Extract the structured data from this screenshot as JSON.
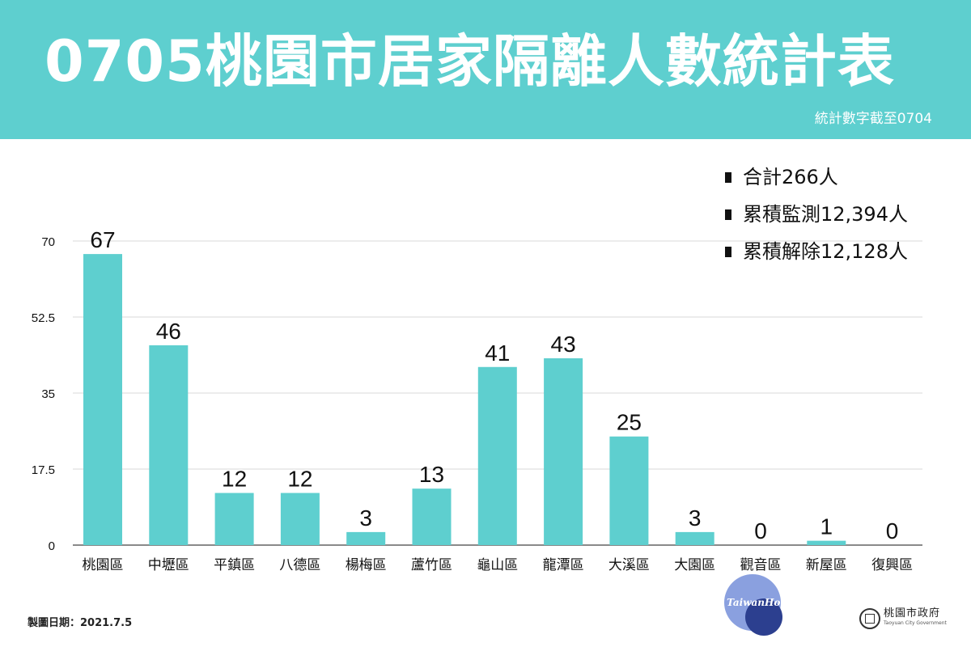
{
  "header": {
    "title": "0705桃園市居家隔離人數統計表",
    "subtitle": "統計數字截至0704"
  },
  "summary": {
    "items": [
      "合計266人",
      "累積監測12,394人",
      "累積解除12,128人"
    ]
  },
  "footer": {
    "date_label": "製圖日期：2021.7.5",
    "logo_text": "TaiwanHot",
    "gov_name": "桃園市政府",
    "gov_name_en": "Taoyuan City Government"
  },
  "colors": {
    "header": "#5ecfcf",
    "bar": "#5ecfcf",
    "grid": "#d9d9d9"
  },
  "chart_data": {
    "type": "bar",
    "categories": [
      "桃園區",
      "中壢區",
      "平鎮區",
      "八德區",
      "楊梅區",
      "蘆竹區",
      "龜山區",
      "龍潭區",
      "大溪區",
      "大園區",
      "觀音區",
      "新屋區",
      "復興區"
    ],
    "values": [
      67,
      46,
      12,
      12,
      3,
      13,
      41,
      43,
      25,
      3,
      0,
      1,
      0
    ],
    "yticks": [
      "0",
      "17.5",
      "35",
      "52.5",
      "70"
    ],
    "ylim": [
      0,
      70
    ],
    "grid": true,
    "data_labels": true
  }
}
